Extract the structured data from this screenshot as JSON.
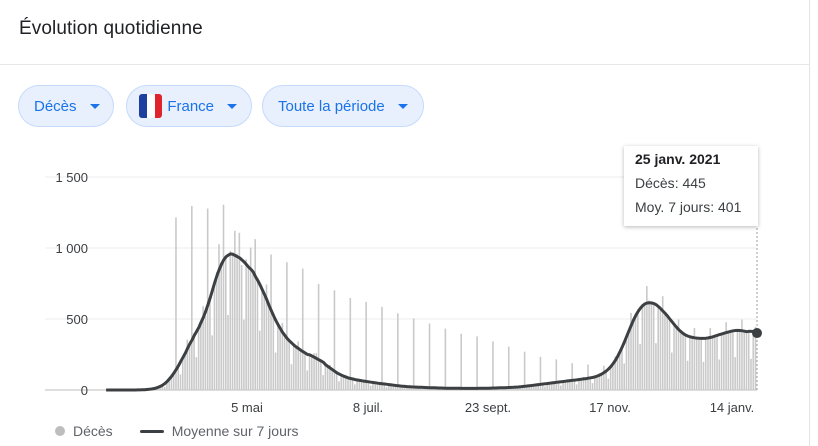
{
  "card": {
    "title": "Évolution quotidienne"
  },
  "filters": {
    "metric": "Décès",
    "country": "France",
    "period": "Toute la période"
  },
  "colors": {
    "bars": "#c6c6c6",
    "line": "#3c4043",
    "chip_text": "#1a73e8",
    "chip_bg": "#e8f0fe"
  },
  "tooltip": {
    "date": "25 janv. 2021",
    "deaths_label": "Décès",
    "deaths_value": "445",
    "avg_label": "Moy. 7 jours",
    "avg_value": "401"
  },
  "chart_data": {
    "type": "bar",
    "y_ticks": [
      "0",
      "500",
      "1 000",
      "1 500"
    ],
    "ylim": [
      0,
      1500
    ],
    "x_ticks": [
      "5 mai",
      "8 juil.",
      "23 sept.",
      "17 nov.",
      "14 janv."
    ],
    "grid": true,
    "series": [
      {
        "name": "Décès",
        "type": "bar",
        "values": [
          0,
          0,
          0,
          0,
          0,
          0,
          0,
          0,
          0,
          0,
          0,
          0,
          0,
          0,
          0,
          0,
          1,
          2,
          3,
          4,
          6,
          8,
          12,
          15,
          20,
          30,
          40,
          55,
          70,
          95,
          120,
          140,
          165,
          200,
          230,
          260,
          300,
          320,
          350,
          400,
          420,
          430,
          480,
          500,
          520,
          600,
          650,
          700,
          760,
          830,
          870,
          900,
          950,
          940,
          960,
          980,
          970,
          950,
          960,
          930,
          880,
          900,
          920,
          870,
          850,
          830,
          800,
          780,
          760,
          700,
          680,
          630,
          590,
          560,
          520,
          480,
          450,
          420,
          400,
          380,
          360,
          340,
          330,
          310,
          300,
          290,
          280,
          270,
          260,
          250,
          240,
          230,
          220,
          260,
          210,
          200,
          190,
          180,
          170,
          150,
          140,
          130,
          120,
          110,
          100,
          95,
          90,
          85,
          80,
          75,
          72,
          70,
          68,
          65,
          62,
          60,
          58,
          55,
          52,
          50,
          48,
          46,
          44,
          42,
          40,
          38,
          36,
          34,
          32,
          30,
          28,
          26,
          25,
          24,
          23,
          22,
          21,
          20,
          20,
          19,
          18,
          18,
          17,
          16,
          16,
          15,
          15,
          14,
          14,
          13,
          13,
          13,
          12,
          12,
          12,
          12,
          12,
          12,
          11,
          11,
          11,
          11,
          11,
          11,
          12,
          12,
          12,
          12,
          13,
          13,
          13,
          14,
          14,
          15,
          15,
          16,
          16,
          17,
          18,
          18,
          19,
          20,
          21,
          22,
          24,
          26,
          28,
          30,
          32,
          34,
          36,
          38,
          40,
          42,
          44,
          46,
          48,
          50,
          52,
          54,
          56,
          58,
          60,
          62,
          64,
          66,
          68,
          70,
          72,
          74,
          76,
          78,
          80,
          82,
          85,
          88,
          92,
          96,
          100,
          110,
          120,
          130,
          145,
          160,
          180,
          200,
          230,
          260,
          300,
          340,
          380,
          420,
          460,
          500,
          540,
          570,
          590,
          600,
          610,
          620,
          630,
          625,
          615,
          600,
          590,
          580,
          560,
          540,
          520,
          500,
          480,
          460,
          440,
          420,
          400,
          390,
          380,
          375,
          370,
          370,
          370,
          365,
          365,
          360,
          360,
          360,
          365,
          370,
          375,
          380,
          385,
          390,
          395,
          400,
          405,
          410,
          415,
          420,
          420,
          425,
          425,
          420,
          415,
          410,
          405,
          400,
          401,
          445
        ],
        "spikes": [
          1350,
          1440,
          1420,
          1450,
          1230,
          1180,
          1060,
          1000,
          950,
          830,
          780,
          720,
          690,
          650,
          600,
          560,
          520,
          480,
          440,
          420,
          380,
          340,
          300,
          260,
          240,
          210,
          200,
          190,
          180,
          170,
          160,
          150,
          140,
          130,
          120,
          110,
          100,
          100,
          90,
          90,
          85,
          80,
          80,
          75,
          70,
          70,
          65,
          65,
          60,
          60,
          55,
          55,
          50,
          50,
          50,
          45,
          45,
          40,
          40,
          40,
          35,
          35,
          35,
          30,
          30,
          30,
          30,
          30,
          35,
          35,
          40,
          45,
          50,
          60,
          70,
          80,
          100,
          120,
          150,
          200,
          250,
          330,
          450,
          600,
          750,
          850,
          920,
          1000,
          1100,
          1220,
          1250,
          1120,
          1210,
          1100,
          920,
          850,
          800,
          680,
          720,
          750,
          670,
          600,
          650,
          620,
          700,
          660,
          650,
          1050,
          1000,
          650,
          620,
          600,
          640,
          660
        ]
      },
      {
        "name": "Moyenne sur 7 jours",
        "type": "line"
      }
    ]
  },
  "legend": {
    "bars_label": "Décès",
    "line_label": "Moyenne sur 7 jours"
  }
}
